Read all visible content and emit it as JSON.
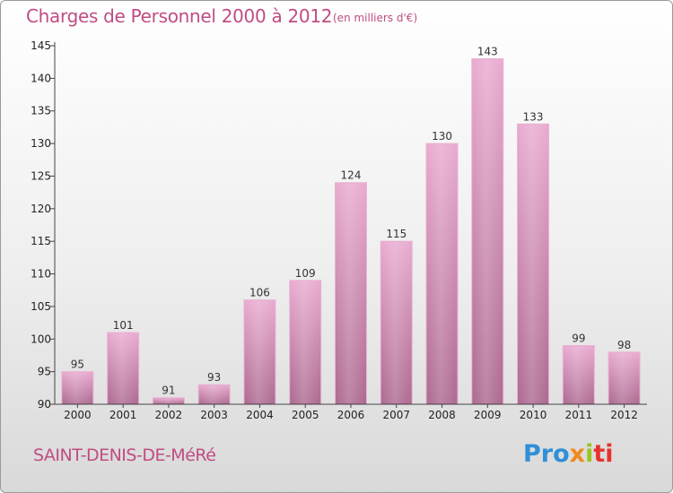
{
  "title": "Charges de Personnel 2000 à 2012",
  "subtitle": "(en milliers d'€)",
  "commune": "SAINT-DENIS-DE-MéRé",
  "logo": [
    "Pro",
    "x",
    "i",
    "ti"
  ],
  "colors": {
    "title": "#c04c83",
    "bar_light": "#e7a7cc",
    "bar_dark": "#b06c93",
    "axis": "#444444"
  },
  "chart_data": {
    "type": "bar",
    "title": "Charges de Personnel 2000 à 2012",
    "subtitle": "(en milliers d'€)",
    "categories": [
      "2000",
      "2001",
      "2002",
      "2003",
      "2004",
      "2005",
      "2006",
      "2007",
      "2008",
      "2009",
      "2010",
      "2011",
      "2012"
    ],
    "values": [
      95,
      101,
      91,
      93,
      106,
      109,
      124,
      115,
      130,
      143,
      133,
      99,
      98
    ],
    "ylim": [
      90,
      145
    ],
    "yticks": [
      90,
      95,
      100,
      105,
      110,
      115,
      120,
      125,
      130,
      135,
      140,
      145
    ],
    "grid": false,
    "legend": "none"
  }
}
